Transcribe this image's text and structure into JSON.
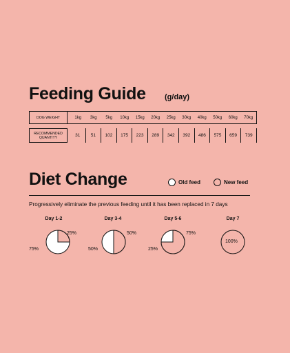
{
  "feeding_guide": {
    "title": "Feeding Guide",
    "unit": "(g/day)",
    "row_weight_label": "DOG WEIGHT",
    "row_quantity_label": "RECOMMENDED QUANTITY",
    "weights": [
      "1kg",
      "3kg",
      "5kg",
      "10kg",
      "15kg",
      "20kg",
      "25kg",
      "30kg",
      "40kg",
      "50kg",
      "60kg",
      "70kg"
    ],
    "quantities": [
      "31",
      "51",
      "102",
      "175",
      "223",
      "289",
      "342",
      "392",
      "486",
      "575",
      "659",
      "739"
    ]
  },
  "diet_change": {
    "title": "Diet Change",
    "legend": {
      "old": "Old feed",
      "new": "New feed"
    },
    "description": "Progressively eliminate the previous feeding until it has been replaced in 7 days",
    "days": [
      {
        "label": "Day 1-2",
        "old_label": "75%",
        "new_label": "25%",
        "new_fraction": 0.25
      },
      {
        "label": "Day 3-4",
        "old_label": "50%",
        "new_label": "50%",
        "new_fraction": 0.5
      },
      {
        "label": "Day 5-6",
        "old_label": "25%",
        "new_label": "75%",
        "new_fraction": 0.75
      },
      {
        "label": "Day 7",
        "center_label": "100%",
        "new_fraction": 1.0
      }
    ]
  },
  "colors": {
    "background": "#f4b5ab",
    "ink": "#111111",
    "old_feed": "#ffffff"
  }
}
